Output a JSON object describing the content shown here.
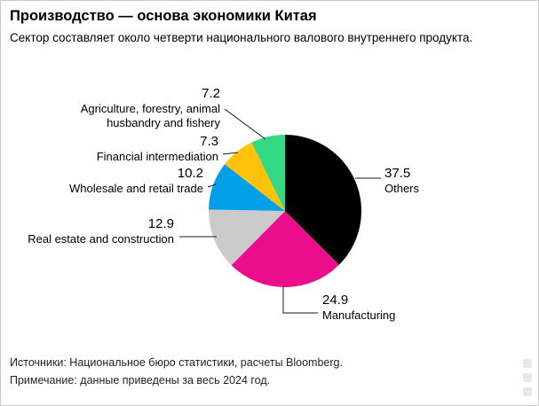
{
  "header": {
    "title": "Производство — основа экономики Китая",
    "subtitle": "Сектор составляет около четверти национального валового внутреннего продукта."
  },
  "footer": {
    "sources": "Источники: Национальное бюро статистики, расчеты Bloomberg.",
    "note": "Примечание: данные приведены за весь 2024 год."
  },
  "chart_data": {
    "type": "pie",
    "title": "Производство — основа экономики Китая",
    "direction": "clockwise",
    "start_angle_deg": 0,
    "legend_position": "callout-labels",
    "slices": [
      {
        "label": "Others",
        "value": 37.5,
        "color": "#000000"
      },
      {
        "label": "Manufacturing",
        "value": 24.9,
        "color": "#EB0D8C"
      },
      {
        "label": "Real estate and construction",
        "value": 12.9,
        "color": "#CBCBCB"
      },
      {
        "label": "Wholesale and retail trade",
        "value": 10.2,
        "color": "#00A0E9"
      },
      {
        "label": "Financial intermediation",
        "value": 7.3,
        "color": "#FFC20A"
      },
      {
        "label": "Agriculture, forestry, animal husbandry and fishery",
        "value": 7.2,
        "color": "#33D983"
      }
    ]
  }
}
